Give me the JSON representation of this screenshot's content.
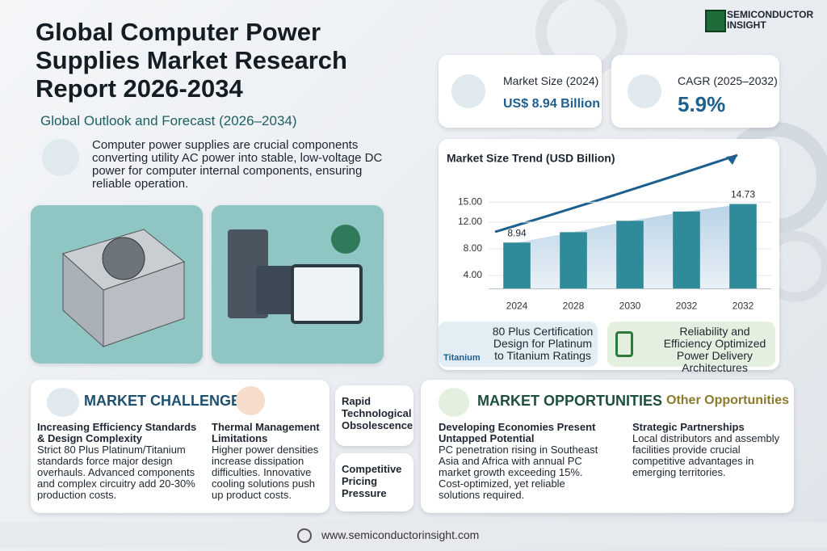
{
  "brand": [
    "SEMICONDUCTOR",
    "INSIGHT"
  ],
  "header": {
    "title": "Global Computer Power Supplies Market Research Report 2026-2034",
    "subtitle": "Global Outlook and Forecast (2026–2034)",
    "description": "Computer power supplies are crucial components converting utility AC power into stable, low-voltage DC power for computer internal components, ensuring reliable operation."
  },
  "kpis": [
    {
      "label": "Market Size (2024)",
      "value": "US$ 8.94 Billion"
    },
    {
      "label": "CAGR (2025–2032)",
      "value": "5.9%"
    }
  ],
  "chart_data": {
    "type": "bar",
    "title": "Market Size Trend (USD Billion)",
    "categories": [
      "2024",
      "2028",
      "2030",
      "2032",
      "2032"
    ],
    "values": [
      8.94,
      10.5,
      12.2,
      13.6,
      14.73
    ],
    "color": "#2f8a9a",
    "ylim": [
      2,
      19
    ],
    "yticks": [
      {
        "value": 4,
        "label": "4.00"
      },
      {
        "value": 8,
        "label": "8.00"
      },
      {
        "value": 12,
        "label": "12.00"
      },
      {
        "value": 15,
        "label": "15.00"
      }
    ]
  },
  "features": [
    {
      "text": "80 Plus Certification Design for Platinum to Titanium Ratings",
      "badge": "Titanium"
    },
    {
      "text": "Reliability and Efficiency Optimized Power Delivery Architectures"
    }
  ],
  "challenges": {
    "title": "MARKET CHALLENGES",
    "items": [
      {
        "heading": "Increasing Efficiency Standards & Design Complexity",
        "text": "Strict 80 Plus Platinum/Titanium standards force major design overhauls. Advanced components and complex circuitry add 20-30% production costs."
      },
      {
        "heading": "Thermal Management Limitations",
        "text": "Higher power densities increase dissipation difficulties. Innovative cooling solutions push up product costs."
      }
    ]
  },
  "side_topics": [
    "Rapid Technological Obsolescence",
    "Competitive Pricing Pressure"
  ],
  "opportunities": {
    "title": "MARKET OPPORTUNITIES",
    "other_title": "Other Opportunities",
    "items": [
      {
        "heading": "Developing Economies Present Untapped Potential",
        "text": "PC penetration rising in Southeast Asia and Africa with annual PC market growth exceeding 15%. Cost-optimized, yet reliable solutions required."
      },
      {
        "heading": "Strategic Partnerships",
        "text": "Local distributors and assembly facilities provide crucial competitive advantages in emerging territories."
      }
    ]
  },
  "footer": {
    "url": "www.semiconductorinsight.com"
  }
}
